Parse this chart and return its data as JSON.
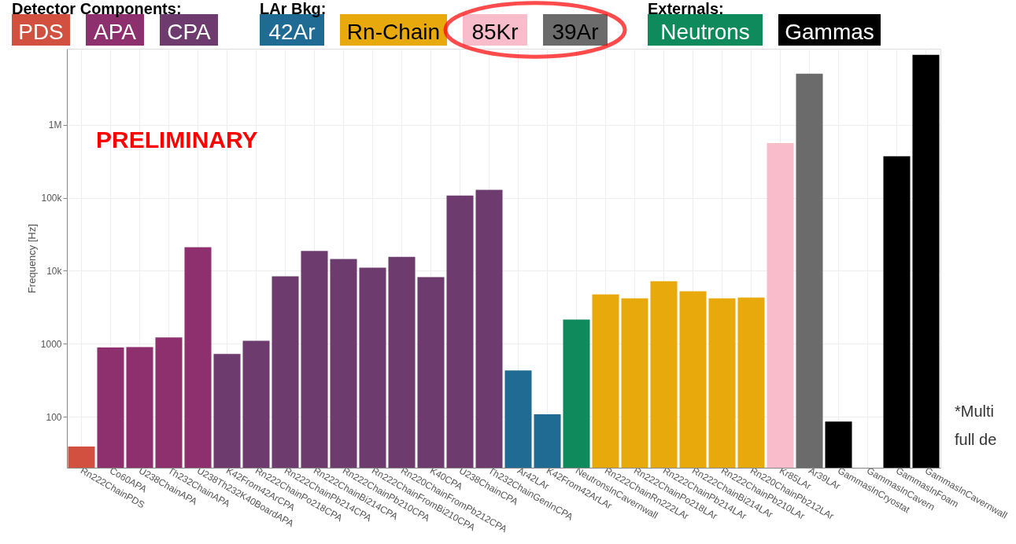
{
  "chart_data": {
    "type": "bar",
    "ylabel": "Frequency [Hz]",
    "log": true,
    "grid": true,
    "legend": "top",
    "categories": [
      "Rn222ChainPDS",
      "Co60APA",
      "U238ChainAPA",
      "Th232ChainAPA",
      "U238Th232K40BoardAPA",
      "K42From42ArCPA",
      "Rn222ChainPo218CPA",
      "Rn222ChainPb214CPA",
      "Rn222ChainBi214CPA",
      "Rn222ChainPb210CPA",
      "Rn222ChainFromBi210CPA",
      "Rn220ChainFromPb212CPA",
      "K40CPA",
      "U238ChainCPA",
      "Th232ChainGenInCPA",
      "Ar42LAr",
      "K42From42ArLAr",
      "NeutronsInCavernwall",
      "Rn222ChainRn222LAr",
      "Rn222ChainPo218LAr",
      "Rn222ChainPb214LAr",
      "Rn222ChainBi214LAr",
      "Rn222ChainPb210LAr",
      "Rn220ChainPb212LAr",
      "Kr85LAr",
      "Ar39LAr",
      "GammasInCryostat",
      "GammasInCavern",
      "GammasInFoam",
      "GammasInCavernwall"
    ],
    "series": [
      {
        "name": "PDS",
        "color": "#d2503f",
        "values": [
          39,
          null,
          null,
          null,
          null,
          null,
          null,
          null,
          null,
          null,
          null,
          null,
          null,
          null,
          null,
          null,
          null,
          null,
          null,
          null,
          null,
          null,
          null,
          null,
          null,
          null,
          null,
          null,
          null,
          null
        ]
      },
      {
        "name": "APA",
        "color": "#8e2f6e",
        "values": [
          null,
          890,
          900,
          1220,
          21000,
          null,
          null,
          null,
          null,
          null,
          null,
          null,
          null,
          null,
          null,
          null,
          null,
          null,
          null,
          null,
          null,
          null,
          null,
          null,
          null,
          null,
          null,
          null,
          null,
          null
        ]
      },
      {
        "name": "CPA",
        "color": "#6d3b6d",
        "values": [
          null,
          null,
          null,
          null,
          null,
          725,
          1100,
          8400,
          18700,
          14500,
          11000,
          15500,
          8200,
          107000,
          128000,
          null,
          null,
          null,
          null,
          null,
          null,
          null,
          null,
          null,
          null,
          null,
          null,
          null,
          null,
          null
        ]
      },
      {
        "name": "42Ar",
        "color": "#1f6b94",
        "values": [
          null,
          null,
          null,
          null,
          null,
          null,
          null,
          null,
          null,
          null,
          null,
          null,
          null,
          null,
          null,
          430,
          108,
          null,
          null,
          null,
          null,
          null,
          null,
          null,
          null,
          null,
          null,
          null,
          null,
          null
        ]
      },
      {
        "name": "Rn-Chain",
        "color": "#e8a90c",
        "values": [
          null,
          null,
          null,
          null,
          null,
          null,
          null,
          null,
          null,
          null,
          null,
          null,
          null,
          null,
          null,
          null,
          null,
          null,
          4750,
          4200,
          7200,
          5250,
          4200,
          4300,
          null,
          null,
          null,
          null,
          null,
          null
        ]
      },
      {
        "name": "85Kr",
        "color": "#f8bccb",
        "values": [
          null,
          null,
          null,
          null,
          null,
          null,
          null,
          null,
          null,
          null,
          null,
          null,
          null,
          null,
          null,
          null,
          null,
          null,
          null,
          null,
          null,
          null,
          null,
          null,
          560000,
          null,
          null,
          null,
          null,
          null
        ]
      },
      {
        "name": "39Ar",
        "color": "#6b6b6b",
        "values": [
          null,
          null,
          null,
          null,
          null,
          null,
          null,
          null,
          null,
          null,
          null,
          null,
          null,
          null,
          null,
          null,
          null,
          null,
          null,
          null,
          null,
          null,
          null,
          null,
          null,
          5000000,
          null,
          null,
          null,
          null
        ]
      },
      {
        "name": "Neutrons",
        "color": "#0e8a5c",
        "values": [
          null,
          null,
          null,
          null,
          null,
          null,
          null,
          null,
          null,
          null,
          null,
          null,
          null,
          null,
          null,
          null,
          null,
          2150,
          null,
          null,
          null,
          null,
          null,
          null,
          null,
          null,
          null,
          null,
          null,
          null
        ]
      },
      {
        "name": "Gammas",
        "color": "#000000",
        "values": [
          null,
          null,
          null,
          null,
          null,
          null,
          null,
          null,
          null,
          null,
          null,
          null,
          null,
          null,
          null,
          null,
          null,
          null,
          null,
          null,
          null,
          null,
          null,
          null,
          null,
          null,
          86,
          null,
          370000,
          9100000
        ]
      }
    ],
    "ylim": [
      20,
      11000000
    ],
    "yticks": [
      {
        "value": 100,
        "label": "100"
      },
      {
        "value": 1000,
        "label": "1000"
      },
      {
        "value": 10000,
        "label": "10k"
      },
      {
        "value": 100000,
        "label": "100k"
      },
      {
        "value": 1000000,
        "label": "1M"
      }
    ],
    "annotations": [
      "Detector Components:",
      "LAr Bkg:",
      "Externals:",
      "PRELIMINARY",
      "*Multi",
      "full de"
    ]
  }
}
